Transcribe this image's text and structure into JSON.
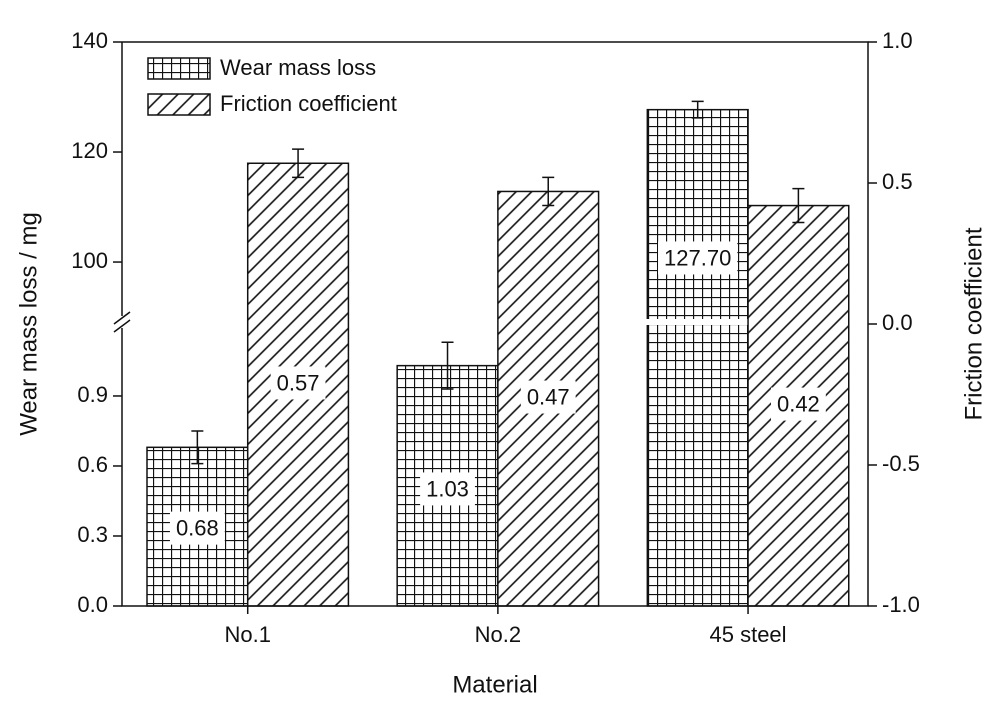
{
  "chart_data": {
    "type": "bar",
    "x_label": "Material",
    "y_label": "Wear mass loss / mg",
    "y2_label": "Friction coefficient",
    "categories": [
      "No.1",
      "No.2",
      "45 steel"
    ],
    "y_segments": [
      {
        "ylim": [
          0,
          1.217
        ],
        "yticks": [
          {
            "value": 0,
            "label": "0.0"
          },
          0.3,
          0.6,
          0.9
        ]
      },
      {
        "ylim": [
          89.1,
          140
        ],
        "yticks": [
          100,
          120,
          140
        ]
      }
    ],
    "y2lim": [
      -1,
      1
    ],
    "y2ticks": [
      {
        "value": -1,
        "label": "-1.0"
      },
      -0.5,
      {
        "value": 0,
        "label": "0.0"
      },
      0.5,
      {
        "value": 1,
        "label": "1.0"
      }
    ],
    "legend": "upper left",
    "series": [
      {
        "name": "Wear mass loss",
        "color": "#111111",
        "pattern": "grid",
        "axis": "y",
        "values": [
          0.68,
          1.03,
          127.7
        ],
        "value_labels": [
          "0.68",
          "1.03",
          "127.70"
        ],
        "errors": [
          0.07,
          0.1,
          1.5
        ]
      },
      {
        "name": "Friction coefficient",
        "color": "#111111",
        "pattern": "hatch",
        "axis": "y2",
        "values": [
          0.57,
          0.47,
          0.42
        ],
        "value_labels": [
          "0.57",
          "0.47",
          "0.42"
        ],
        "errors": [
          0.05,
          0.05,
          0.06
        ]
      }
    ]
  }
}
